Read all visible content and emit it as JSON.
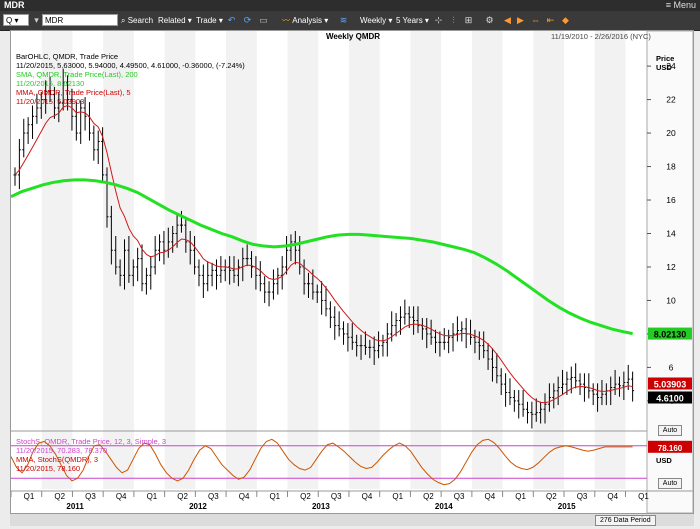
{
  "window": {
    "title": "MDR",
    "menu_label": "Menu"
  },
  "toolbar": {
    "symbol_prefix": "Q",
    "symbol_value": "MDR",
    "search": "Search",
    "related": "Related",
    "trade": "Trade",
    "analysis": "Analysis",
    "period": "Weekly",
    "range": "5 Years"
  },
  "header": {
    "title": "Weekly QMDR",
    "daterange": "11/19/2010 - 2/26/2016 (NYC)"
  },
  "legend": {
    "l1": "BarOHLC, QMDR, Trade Price",
    "l2": "11/20/2015, 5.63000, 5.94000, 4.49500, 4.61000, -0.36000, (-7.24%)",
    "l3": "SMA, QMDR, Trade Price(Last), 200",
    "l4": "11/20/2015, 8.02130",
    "l5": "MMA, QMDR, Trade Price(Last), 5",
    "l6": "11/20/2015, 5.03903",
    "s1": "StochS, QMDR, Trade Price, 12, 3, Simple, 3",
    "s2": "11/20/2015, 70.283, 78.370",
    "s3": "MMA, StochS(QMDR), 3",
    "s4": "11/20/2015, 78.160"
  },
  "price_axis": {
    "label1": "Price",
    "label2": "USD",
    "auto": "Auto"
  },
  "stoch_axis": {
    "label": "USD",
    "auto": "Auto"
  },
  "status": {
    "data_period": "276 Data Period"
  },
  "chart_data": {
    "type": "line",
    "price_ticks": [
      4,
      6,
      8,
      10,
      12,
      14,
      16,
      18,
      20,
      22,
      24
    ],
    "ylim": [
      2.5,
      25.5
    ],
    "quarter_labels": [
      "Q1",
      "Q2",
      "Q3",
      "Q4",
      "Q1",
      "Q2",
      "Q3",
      "Q4",
      "Q1",
      "Q2",
      "Q3",
      "Q4",
      "Q1",
      "Q2",
      "Q3",
      "Q4",
      "Q1",
      "Q2",
      "Q3",
      "Q4",
      "Q1"
    ],
    "year_labels": [
      "2011",
      "2012",
      "2013",
      "2014",
      "2015"
    ],
    "last_values": {
      "sma": "8.02130",
      "mma": "5.03903",
      "close": "4.6100",
      "stoch": "78.160"
    },
    "colors": {
      "bars": "#000000",
      "sma": "#22e022",
      "mma": "#d01818",
      "stoch_k": "#cc5500",
      "stoch_level": "#cc44cc",
      "close_box": "#000000",
      "sma_box": "#22cc22",
      "mma_box": "#cc0000"
    },
    "close": [
      17.5,
      19,
      20,
      20.5,
      21,
      21.5,
      22,
      22.5,
      22.3,
      21.5,
      21.8,
      23,
      22,
      21,
      20,
      21.5,
      21,
      20,
      19,
      19.5,
      17.5,
      15,
      13,
      12,
      11.5,
      13,
      11.5,
      12,
      12.5,
      11,
      11.5,
      12,
      13,
      13.5,
      13,
      13.5,
      14,
      14.5,
      14.5,
      13.5,
      13,
      12,
      11.5,
      11,
      11.5,
      11.8,
      11.5,
      11.8,
      12,
      11.8,
      11.5,
      12,
      12.5,
      12.5,
      12,
      11.5,
      11,
      10.5,
      10.5,
      11,
      11.5,
      12,
      13,
      13.5,
      13,
      12,
      11,
      11,
      10.5,
      10.5,
      10,
      9.5,
      9,
      8.5,
      8.3,
      8,
      7.8,
      7.5,
      7.3,
      7.3,
      7.2,
      7.2,
      7,
      7.3,
      7.5,
      8,
      8.5,
      8.8,
      9,
      9.2,
      9,
      8.8,
      8.5,
      8.3,
      8,
      7.8,
      7.5,
      7.5,
      7.5,
      7.8,
      8,
      8.2,
      8.3,
      8,
      7.8,
      7.5,
      7.3,
      7,
      6.5,
      6,
      5.5,
      5,
      4.5,
      4.2,
      4,
      3.8,
      3.5,
      3.3,
      3.2,
      3.3,
      3.5,
      3.8,
      4.2,
      4.6,
      4.8,
      5,
      5.3,
      5.4,
      5.2,
      5,
      4.8,
      4.6,
      4.4,
      4.2,
      4.4,
      4.6,
      4.8,
      5,
      4.9,
      5.1,
      5.3,
      4.61
    ],
    "sma200": [
      16.2,
      16.5,
      16.7,
      16.9,
      17.05,
      17.15,
      17.2,
      17.2,
      17.15,
      17.05,
      16.9,
      16.7,
      16.45,
      16.1,
      15.75,
      15.4,
      15.1,
      14.8,
      14.5,
      14.25,
      14,
      13.8,
      13.55,
      13.35,
      13.25,
      13.2,
      13.25,
      13.35,
      13.5,
      13.65,
      13.8,
      13.9,
      13.95,
      13.95,
      13.9,
      13.85,
      13.8,
      13.75,
      13.7,
      13.6,
      13.5,
      13.35,
      13.2,
      13.05,
      12.85,
      12.55,
      12.2,
      11.8,
      11.35,
      10.9,
      10.45,
      10,
      9.6,
      9.25,
      8.95,
      8.7,
      8.5,
      8.3,
      8.15,
      8.02
    ],
    "stoch_k": [
      60,
      40,
      30,
      45,
      70,
      85,
      88,
      80,
      65,
      45,
      25,
      15,
      20,
      35,
      60,
      80,
      82,
      70,
      55,
      40,
      30,
      35,
      55,
      75,
      85,
      82,
      65,
      45,
      30,
      20,
      15,
      20,
      35,
      55,
      72,
      80,
      75,
      60,
      45,
      35,
      25,
      18,
      22,
      35,
      55,
      75,
      88,
      92,
      85,
      70,
      55,
      45,
      38,
      35,
      40,
      55,
      70,
      82,
      85,
      78,
      70,
      60,
      50,
      42,
      38,
      40,
      50,
      62,
      72,
      80,
      85,
      80,
      70,
      55,
      40,
      28,
      18,
      12,
      8,
      10,
      18,
      32,
      50,
      68,
      82,
      90,
      92,
      86,
      75,
      62,
      50,
      42,
      38,
      36,
      40,
      48,
      58,
      68,
      75,
      78,
      80,
      78,
      75,
      72,
      70,
      72,
      75,
      78,
      78,
      78,
      78,
      78,
      78
    ]
  }
}
